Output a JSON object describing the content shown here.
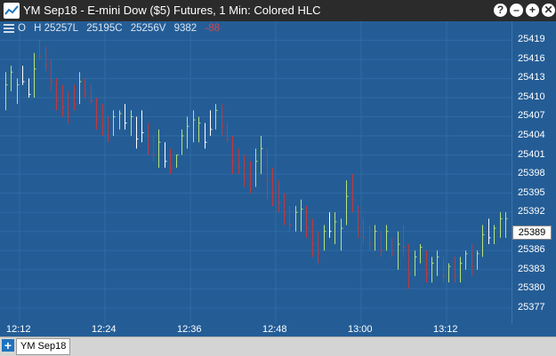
{
  "window": {
    "title": "YM Sep18 - E-mini Dow ($5) Futures, 1 Min: Colored HLC",
    "buttons": [
      "?",
      "–",
      "+",
      "✕"
    ]
  },
  "ohlc_readout": {
    "open": "O",
    "high": "H 25257L",
    "low": "25195C",
    "close": "25256V",
    "volume": "9382",
    "change": "-88"
  },
  "price_tag": "25389",
  "tab": {
    "label": "YM Sep18",
    "add_label": "+"
  },
  "colors": {
    "up": "#b6e37a",
    "down": "#c0393c",
    "neutral": "#ffffff",
    "background": "#245d96"
  },
  "chart_data": {
    "type": "ohlc",
    "style": "Colored HLC",
    "y_ticks": [
      "25419",
      "25416",
      "25413",
      "25410",
      "25407",
      "25404",
      "25401",
      "25398",
      "25395",
      "25392",
      "25389",
      "25386",
      "25383",
      "25380",
      "25377"
    ],
    "x_ticks": [
      "12:12",
      "12:24",
      "12:36",
      "12:48",
      "13:00",
      "13:12"
    ],
    "ylim": [
      25376,
      25421
    ],
    "bars": [
      [
        25414,
        25408,
        "up"
      ],
      [
        25415,
        25411,
        "up"
      ],
      [
        25413,
        25409,
        "up"
      ],
      [
        25415,
        25412,
        "neutral"
      ],
      [
        25413,
        25410,
        "neutral"
      ],
      [
        25417,
        25410,
        "up"
      ],
      [
        25419,
        25416,
        "down"
      ],
      [
        25418,
        25414,
        "down"
      ],
      [
        25416,
        25411,
        "down"
      ],
      [
        25413,
        25408,
        "down"
      ],
      [
        25412,
        25407,
        "down"
      ],
      [
        25411,
        25406,
        "down"
      ],
      [
        25412,
        25408,
        "down"
      ],
      [
        25414,
        25409,
        "up"
      ],
      [
        25413,
        25410,
        "down"
      ],
      [
        25412,
        25409,
        "down"
      ],
      [
        25410,
        25405,
        "down"
      ],
      [
        25409,
        25404,
        "down"
      ],
      [
        25407,
        25403,
        "down"
      ],
      [
        25408,
        25404,
        "up"
      ],
      [
        25408,
        25405,
        "up"
      ],
      [
        25409,
        25405,
        "neutral"
      ],
      [
        25408,
        25404,
        "up"
      ],
      [
        25407,
        25402,
        "neutral"
      ],
      [
        25408,
        25403,
        "neutral"
      ],
      [
        25406,
        25401,
        "down"
      ],
      [
        25404,
        25400,
        "down"
      ],
      [
        25405,
        25399,
        "up"
      ],
      [
        25403,
        25399,
        "neutral"
      ],
      [
        25402,
        25398,
        "down"
      ],
      [
        25401,
        25399,
        "up"
      ],
      [
        25405,
        25401,
        "up"
      ],
      [
        25407,
        25402,
        "up"
      ],
      [
        25408,
        25403,
        "up"
      ],
      [
        25407,
        25403,
        "up"
      ],
      [
        25406,
        25402,
        "neutral"
      ],
      [
        25408,
        25404,
        "neutral"
      ],
      [
        25409,
        25405,
        "up"
      ],
      [
        25409,
        25404,
        "down"
      ],
      [
        25406,
        25403,
        "down"
      ],
      [
        25404,
        25398,
        "down"
      ],
      [
        25402,
        25398,
        "down"
      ],
      [
        25401,
        25396,
        "down"
      ],
      [
        25400,
        25395,
        "down"
      ],
      [
        25402,
        25396,
        "up"
      ],
      [
        25404,
        25398,
        "up"
      ],
      [
        25402,
        25394,
        "down"
      ],
      [
        25399,
        25393,
        "down"
      ],
      [
        25397,
        25392,
        "down"
      ],
      [
        25395,
        25390,
        "down"
      ],
      [
        25393,
        25389,
        "down"
      ],
      [
        25393,
        25389,
        "up"
      ],
      [
        25394,
        25389,
        "up"
      ],
      [
        25393,
        25388,
        "down"
      ],
      [
        25391,
        25385,
        "down"
      ],
      [
        25389,
        25384,
        "down"
      ],
      [
        25390,
        25386,
        "up"
      ],
      [
        25392,
        25388,
        "neutral"
      ],
      [
        25392,
        25387,
        "up"
      ],
      [
        25391,
        25386,
        "up"
      ],
      [
        25397,
        25390,
        "up"
      ],
      [
        25398,
        25392,
        "down"
      ],
      [
        25393,
        25388,
        "down"
      ],
      [
        25391,
        25387,
        "down"
      ],
      [
        25390,
        25386,
        "down"
      ],
      [
        25390,
        25386,
        "up"
      ],
      [
        25389,
        25385,
        "down"
      ],
      [
        25390,
        25386,
        "up"
      ],
      [
        25388,
        25385,
        "down"
      ],
      [
        25389,
        25383,
        "up"
      ],
      [
        25390,
        25385,
        "down"
      ],
      [
        25387,
        25380,
        "down"
      ],
      [
        25386,
        25382,
        "up"
      ],
      [
        25387,
        25384,
        "up"
      ],
      [
        25386,
        25381,
        "down"
      ],
      [
        25385,
        25381,
        "up"
      ],
      [
        25386,
        25382,
        "up"
      ],
      [
        25385,
        25381,
        "down"
      ],
      [
        25384,
        25381,
        "up"
      ],
      [
        25385,
        25381,
        "down"
      ],
      [
        25385,
        25381,
        "up"
      ],
      [
        25386,
        25383,
        "up"
      ],
      [
        25387,
        25382,
        "down"
      ],
      [
        25386,
        25383,
        "up"
      ],
      [
        25390,
        25385,
        "up"
      ],
      [
        25391,
        25387,
        "neutral"
      ],
      [
        25390,
        25387,
        "up"
      ],
      [
        25392,
        25388,
        "up"
      ],
      [
        25392,
        25388,
        "up"
      ]
    ]
  }
}
